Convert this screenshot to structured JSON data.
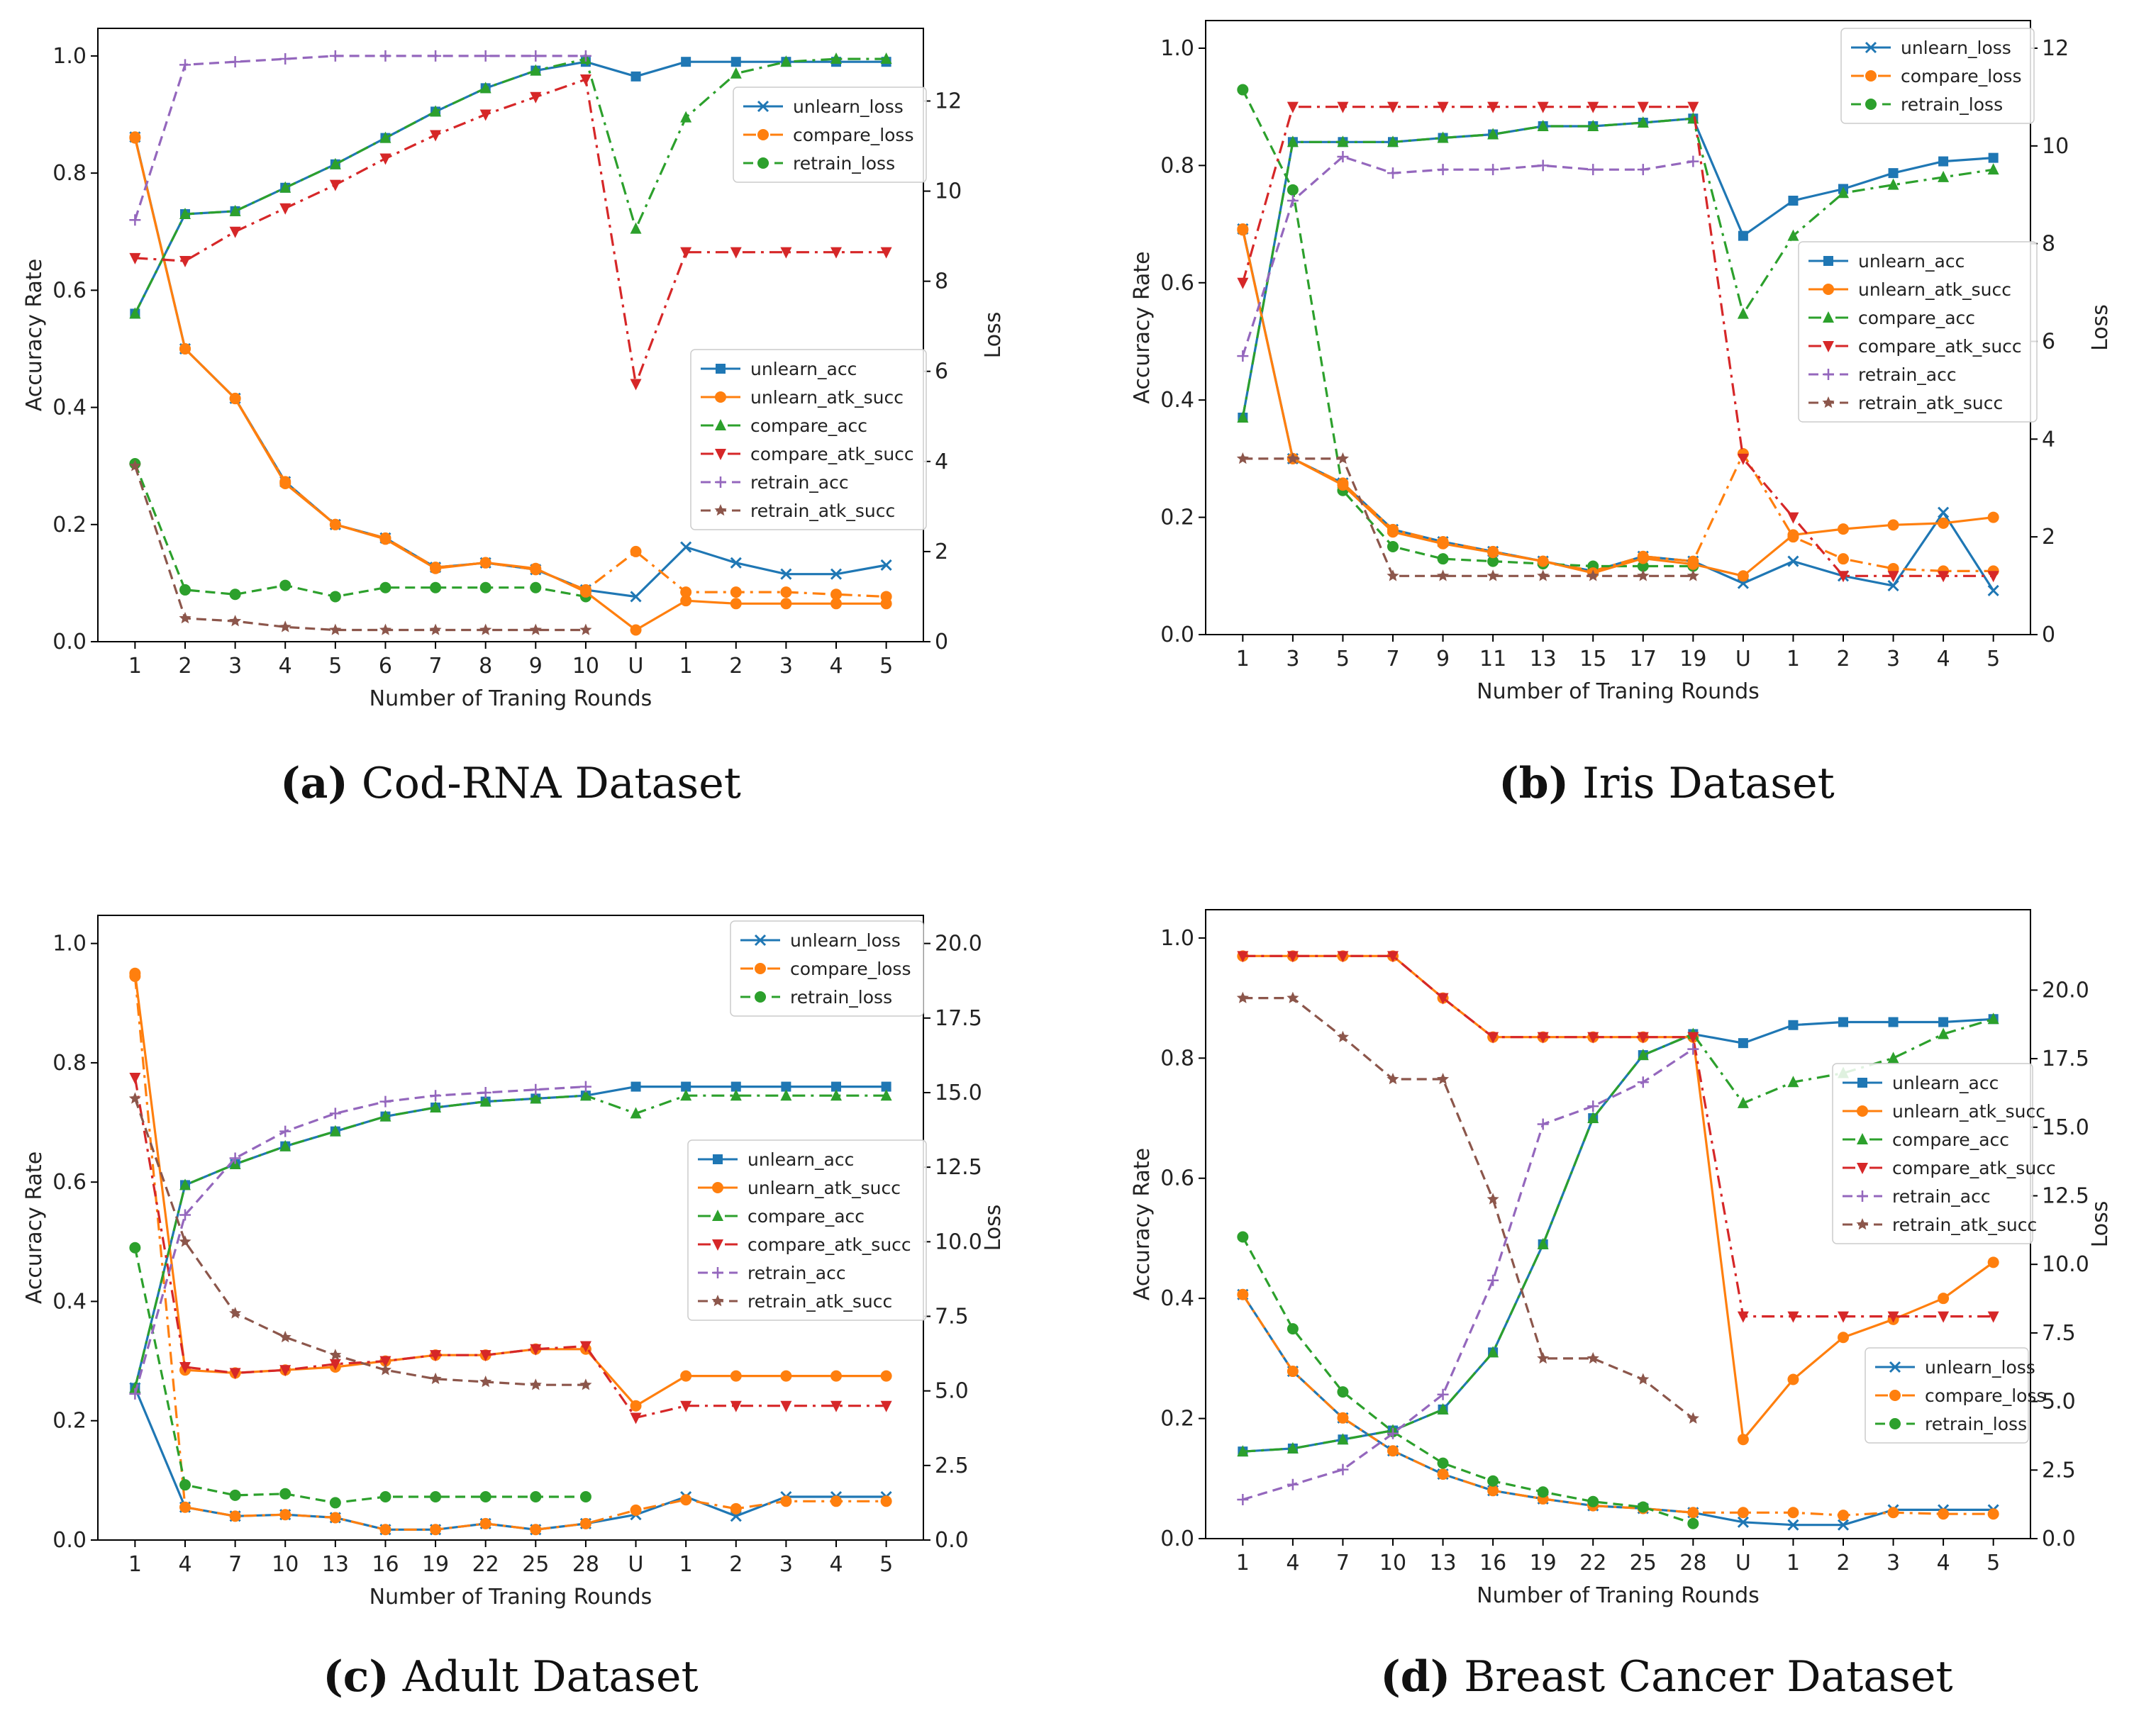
{
  "colors": {
    "unlearn": "#1f77b4",
    "compare_orange": "#ff7f0e",
    "green": "#2ca02c",
    "red": "#d62728",
    "purple": "#9467bd",
    "brown": "#8c564b"
  },
  "captions": [
    {
      "letter": "(a)",
      "text": "Cod-RNA Dataset"
    },
    {
      "letter": "(b)",
      "text": "Iris Dataset"
    },
    {
      "letter": "(c)",
      "text": "Adult Dataset"
    },
    {
      "letter": "(d)",
      "text": "Breast Cancer Dataset"
    }
  ],
  "chart_data": [
    {
      "type": "line",
      "xlabel": "Number of Traning Rounds",
      "ylabel": "Accuracy Rate",
      "ylabel2": "Loss",
      "categories": [
        "1",
        "2",
        "3",
        "4",
        "5",
        "6",
        "7",
        "8",
        "9",
        "10",
        "U",
        "1",
        "2",
        "3",
        "4",
        "5"
      ],
      "ylim": [
        0,
        1.0
      ],
      "yticks": [
        "0.0",
        "0.2",
        "0.4",
        "0.6",
        "0.8",
        "1.0"
      ],
      "y2lim": [
        0,
        13.0
      ],
      "y2ticks": [
        "0",
        "2",
        "4",
        "6",
        "8",
        "10",
        "12"
      ],
      "acc_legend_pos": "center-right",
      "loss_legend_pos": "top-right",
      "acc_series": [
        {
          "name": "unlearn_acc",
          "values": [
            0.56,
            0.73,
            0.735,
            0.775,
            0.815,
            0.86,
            0.905,
            0.945,
            0.975,
            0.99,
            0.965,
            0.99,
            0.99,
            0.99,
            0.99,
            0.99
          ]
        },
        {
          "name": "unlearn_atk_succ",
          "values": [
            0.86,
            0.5,
            0.415,
            0.27,
            0.2,
            0.175,
            0.125,
            0.135,
            0.125,
            0.085,
            0.02,
            0.07,
            0.065,
            0.065,
            0.065,
            0.065
          ]
        },
        {
          "name": "compare_acc",
          "values": [
            0.56,
            0.73,
            0.735,
            0.775,
            0.815,
            0.86,
            0.905,
            0.945,
            0.975,
            0.995,
            0.705,
            0.895,
            0.97,
            0.99,
            0.995,
            0.995
          ]
        },
        {
          "name": "compare_atk_succ",
          "values": [
            0.655,
            0.65,
            0.7,
            0.74,
            0.78,
            0.825,
            0.865,
            0.9,
            0.93,
            0.96,
            0.44,
            0.665,
            0.665,
            0.665,
            0.665,
            0.665
          ]
        },
        {
          "name": "retrain_acc",
          "values": [
            0.72,
            0.985,
            0.99,
            0.995,
            1.0,
            1.0,
            1.0,
            1.0,
            1.0,
            1.0
          ]
        },
        {
          "name": "retrain_atk_succ",
          "values": [
            0.3,
            0.04,
            0.035,
            0.025,
            0.02,
            0.02,
            0.02,
            0.02,
            0.02,
            0.02
          ]
        }
      ],
      "loss_series": [
        {
          "name": "unlearn_loss",
          "values": [
            11.2,
            6.5,
            5.4,
            3.55,
            2.6,
            2.3,
            1.65,
            1.75,
            1.6,
            1.15,
            1.0,
            2.1,
            1.75,
            1.5,
            1.5,
            1.7
          ]
        },
        {
          "name": "compare_loss",
          "values": [
            11.2,
            6.5,
            5.4,
            3.55,
            2.6,
            2.3,
            1.65,
            1.75,
            1.6,
            1.15,
            2.0,
            1.1,
            1.1,
            1.1,
            1.05,
            1.0
          ]
        },
        {
          "name": "retrain_loss",
          "values": [
            3.95,
            1.15,
            1.05,
            1.25,
            1.0,
            1.2,
            1.2,
            1.2,
            1.2,
            1.0
          ]
        }
      ]
    },
    {
      "type": "line",
      "xlabel": "Number of Traning Rounds",
      "ylabel": "Accuracy Rate",
      "ylabel2": "Loss",
      "categories": [
        "1",
        "3",
        "5",
        "7",
        "9",
        "11",
        "13",
        "15",
        "17",
        "19",
        "U",
        "1",
        "2",
        "3",
        "4",
        "5"
      ],
      "ylim": [
        0,
        1.0
      ],
      "yticks": [
        "0.0",
        "0.2",
        "0.4",
        "0.6",
        "0.8",
        "1.0"
      ],
      "y2lim": [
        0,
        12
      ],
      "y2ticks": [
        "0",
        "2",
        "4",
        "6",
        "8",
        "10",
        "12"
      ],
      "acc_legend_pos": "center-right",
      "loss_legend_pos": "top-right",
      "acc_series": [
        {
          "name": "unlearn_acc",
          "values": [
            0.37,
            0.84,
            0.84,
            0.84,
            0.847,
            0.853,
            0.867,
            0.867,
            0.873,
            0.88,
            0.68,
            0.74,
            0.76,
            0.787,
            0.807,
            0.813
          ]
        },
        {
          "name": "unlearn_atk_succ",
          "values": [
            0.69,
            0.3,
            0.255,
            0.175,
            0.155,
            0.14,
            0.125,
            0.105,
            0.13,
            0.12,
            0.1,
            0.17,
            0.18,
            0.187,
            0.19,
            0.2
          ]
        },
        {
          "name": "compare_acc",
          "values": [
            0.37,
            0.84,
            0.84,
            0.84,
            0.847,
            0.853,
            0.867,
            0.867,
            0.873,
            0.88,
            0.547,
            0.68,
            0.753,
            0.767,
            0.78,
            0.793
          ]
        },
        {
          "name": "compare_atk_succ",
          "values": [
            0.6,
            0.9,
            0.9,
            0.9,
            0.9,
            0.9,
            0.9,
            0.9,
            0.9,
            0.9,
            0.3,
            0.2,
            0.1,
            0.1,
            0.1,
            0.1
          ]
        },
        {
          "name": "retrain_acc",
          "values": [
            0.475,
            0.74,
            0.815,
            0.787,
            0.793,
            0.793,
            0.8,
            0.793,
            0.793,
            0.807
          ]
        },
        {
          "name": "retrain_atk_succ",
          "values": [
            0.3,
            0.3,
            0.3,
            0.1,
            0.1,
            0.1,
            0.1,
            0.1,
            0.1,
            0.1
          ]
        }
      ],
      "loss_series": [
        {
          "name": "unlearn_loss",
          "values": [
            8.3,
            3.6,
            3.1,
            2.15,
            1.9,
            1.7,
            1.5,
            1.3,
            1.6,
            1.5,
            1.05,
            1.5,
            1.2,
            1.0,
            2.5,
            0.9
          ]
        },
        {
          "name": "compare_loss",
          "values": [
            8.3,
            3.6,
            3.1,
            2.15,
            1.9,
            1.7,
            1.5,
            1.3,
            1.6,
            1.5,
            3.7,
            2.0,
            1.55,
            1.35,
            1.3,
            1.3
          ]
        },
        {
          "name": "retrain_loss",
          "values": [
            11.15,
            9.1,
            2.95,
            1.8,
            1.55,
            1.5,
            1.45,
            1.4,
            1.4,
            1.4
          ]
        }
      ]
    },
    {
      "type": "line",
      "xlabel": "Number of Traning Rounds",
      "ylabel": "Accuracy Rate",
      "ylabel2": "Loss",
      "categories": [
        "1",
        "4",
        "7",
        "10",
        "13",
        "16",
        "19",
        "22",
        "25",
        "28",
        "U",
        "1",
        "2",
        "3",
        "4",
        "5"
      ],
      "ylim": [
        0,
        1.0
      ],
      "yticks": [
        "0.0",
        "0.2",
        "0.4",
        "0.6",
        "0.8",
        "1.0"
      ],
      "y2lim": [
        0,
        20
      ],
      "y2ticks": [
        "0.0",
        "2.5",
        "5.0",
        "7.5",
        "10.0",
        "12.5",
        "15.0",
        "17.5",
        "20.0"
      ],
      "acc_legend_pos": "center-right",
      "loss_legend_pos": "top-right",
      "acc_series": [
        {
          "name": "unlearn_acc",
          "values": [
            0.255,
            0.595,
            0.63,
            0.66,
            0.685,
            0.71,
            0.725,
            0.735,
            0.74,
            0.745,
            0.76,
            0.76,
            0.76,
            0.76,
            0.76,
            0.76
          ]
        },
        {
          "name": "unlearn_atk_succ",
          "values": [
            0.95,
            0.285,
            0.28,
            0.285,
            0.29,
            0.3,
            0.31,
            0.31,
            0.32,
            0.32,
            0.225,
            0.275,
            0.275,
            0.275,
            0.275,
            0.275
          ]
        },
        {
          "name": "compare_acc",
          "values": [
            0.255,
            0.595,
            0.63,
            0.66,
            0.685,
            0.71,
            0.725,
            0.735,
            0.74,
            0.745,
            0.715,
            0.745,
            0.745,
            0.745,
            0.745,
            0.745
          ]
        },
        {
          "name": "compare_atk_succ",
          "values": [
            0.775,
            0.29,
            0.28,
            0.285,
            0.295,
            0.3,
            0.31,
            0.31,
            0.32,
            0.325,
            0.205,
            0.225,
            0.225,
            0.225,
            0.225,
            0.225
          ]
        },
        {
          "name": "retrain_acc",
          "values": [
            0.245,
            0.545,
            0.64,
            0.685,
            0.715,
            0.735,
            0.745,
            0.75,
            0.755,
            0.76
          ]
        },
        {
          "name": "retrain_atk_succ",
          "values": [
            0.74,
            0.5,
            0.38,
            0.34,
            0.31,
            0.285,
            0.27,
            0.265,
            0.26,
            0.26
          ]
        }
      ],
      "loss_series": [
        {
          "name": "unlearn_loss",
          "values": [
            5.1,
            1.1,
            0.8,
            0.85,
            0.75,
            0.35,
            0.35,
            0.55,
            0.35,
            0.55,
            0.85,
            1.45,
            0.8,
            1.45,
            1.45,
            1.45
          ]
        },
        {
          "name": "compare_loss",
          "values": [
            18.9,
            1.1,
            0.8,
            0.85,
            0.75,
            0.35,
            0.35,
            0.55,
            0.35,
            0.55,
            1.0,
            1.35,
            1.05,
            1.3,
            1.3,
            1.3
          ]
        },
        {
          "name": "retrain_loss",
          "values": [
            9.8,
            1.85,
            1.5,
            1.55,
            1.25,
            1.45,
            1.45,
            1.45,
            1.45,
            1.45
          ]
        }
      ]
    },
    {
      "type": "line",
      "xlabel": "Number of Traning Rounds",
      "ylabel": "Accuracy Rate",
      "ylabel2": "Loss",
      "categories": [
        "1",
        "4",
        "7",
        "10",
        "13",
        "16",
        "19",
        "22",
        "25",
        "28",
        "U",
        "1",
        "2",
        "3",
        "4",
        "5"
      ],
      "ylim": [
        0,
        1.0
      ],
      "yticks": [
        "0.0",
        "0.2",
        "0.4",
        "0.6",
        "0.8",
        "1.0"
      ],
      "y2lim": [
        0,
        21.9
      ],
      "y2ticks": [
        "0.0",
        "2.5",
        "5.0",
        "7.5",
        "10.0",
        "12.5",
        "15.0",
        "17.5",
        "20.0"
      ],
      "acc_legend_pos": "top-right",
      "loss_legend_pos": "lower-right",
      "acc_series": [
        {
          "name": "unlearn_acc",
          "values": [
            0.145,
            0.15,
            0.165,
            0.18,
            0.215,
            0.31,
            0.49,
            0.7,
            0.805,
            0.84,
            0.825,
            0.855,
            0.86,
            0.86,
            0.86,
            0.865
          ]
        },
        {
          "name": "unlearn_atk_succ",
          "values": [
            0.97,
            0.97,
            0.97,
            0.97,
            0.9,
            0.835,
            0.835,
            0.835,
            0.835,
            0.835,
            0.165,
            0.265,
            0.335,
            0.365,
            0.4,
            0.46
          ]
        },
        {
          "name": "compare_acc",
          "values": [
            0.145,
            0.15,
            0.165,
            0.18,
            0.215,
            0.31,
            0.49,
            0.7,
            0.805,
            0.84,
            0.725,
            0.76,
            0.775,
            0.8,
            0.84,
            0.865
          ]
        },
        {
          "name": "compare_atk_succ",
          "values": [
            0.97,
            0.97,
            0.97,
            0.97,
            0.9,
            0.835,
            0.835,
            0.835,
            0.835,
            0.835,
            0.37,
            0.37,
            0.37,
            0.37,
            0.37,
            0.37
          ]
        },
        {
          "name": "retrain_acc",
          "values": [
            0.065,
            0.09,
            0.115,
            0.175,
            0.24,
            0.43,
            0.69,
            0.72,
            0.76,
            0.815
          ]
        },
        {
          "name": "retrain_atk_succ",
          "values": [
            0.9,
            0.9,
            0.835,
            0.765,
            0.765,
            0.565,
            0.3,
            0.3,
            0.265,
            0.2
          ]
        }
      ],
      "loss_series": [
        {
          "name": "unlearn_loss",
          "values": [
            8.9,
            6.1,
            4.4,
            3.2,
            2.35,
            1.75,
            1.45,
            1.2,
            1.1,
            0.95,
            0.6,
            0.5,
            0.5,
            1.05,
            1.05,
            1.05
          ]
        },
        {
          "name": "compare_loss",
          "values": [
            8.9,
            6.1,
            4.4,
            3.2,
            2.35,
            1.75,
            1.45,
            1.2,
            1.1,
            0.95,
            0.95,
            0.95,
            0.85,
            0.95,
            0.9,
            0.9
          ]
        },
        {
          "name": "retrain_loss",
          "values": [
            11.0,
            7.65,
            5.35,
            3.9,
            2.75,
            2.1,
            1.7,
            1.35,
            1.15,
            0.55
          ]
        }
      ]
    }
  ]
}
